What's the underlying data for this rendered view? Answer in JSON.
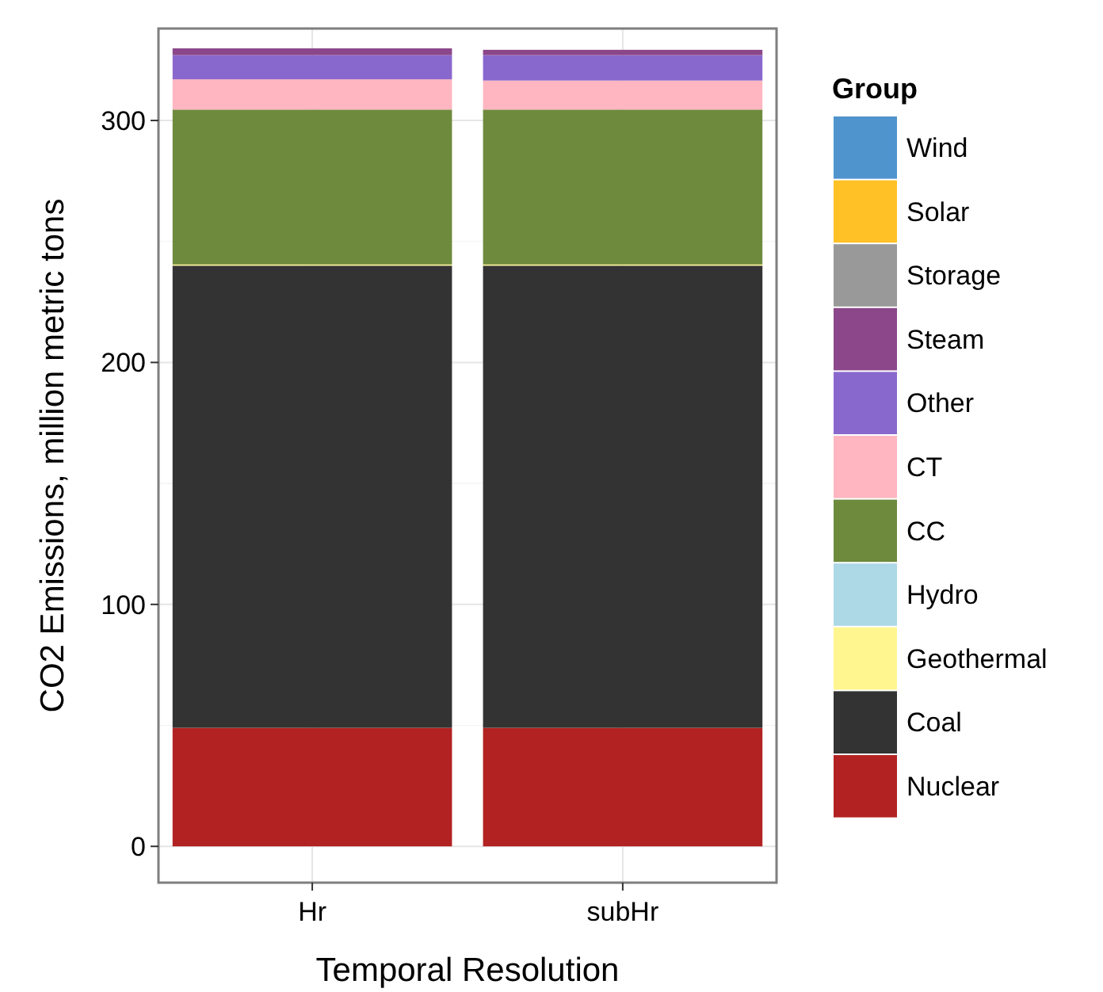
{
  "chart_data": {
    "type": "bar",
    "stacked": true,
    "xlabel": "Temporal Resolution",
    "ylabel": "CO2 Emissions, million metric tons",
    "legend_title": "Group",
    "legend": "right",
    "grid": true,
    "categories": [
      "Hr",
      "subHr"
    ],
    "ylim": [
      -15,
      338
    ],
    "yticks": [
      0,
      100,
      200,
      300
    ],
    "series": [
      {
        "name": "Nuclear",
        "color": "#b22222",
        "values": [
          49,
          49
        ]
      },
      {
        "name": "Coal",
        "color": "#333333",
        "values": [
          191,
          191
        ]
      },
      {
        "name": "Geothermal",
        "color": "#fff68f",
        "values": [
          0.5,
          0.5
        ]
      },
      {
        "name": "Hydro",
        "color": "#add8e6",
        "values": [
          0,
          0
        ]
      },
      {
        "name": "CC",
        "color": "#6e8b3d",
        "values": [
          64,
          64
        ]
      },
      {
        "name": "CT",
        "color": "#ffb6c1",
        "values": [
          12.5,
          12
        ]
      },
      {
        "name": "Other",
        "color": "#8968cd",
        "values": [
          10,
          10.5
        ]
      },
      {
        "name": "Steam",
        "color": "#8b4789",
        "values": [
          2.8,
          2.2
        ]
      },
      {
        "name": "Storage",
        "color": "#999999",
        "values": [
          0,
          0
        ]
      },
      {
        "name": "Solar",
        "color": "#ffc125",
        "values": [
          0,
          0
        ]
      },
      {
        "name": "Wind",
        "color": "#4f94cd",
        "values": [
          0,
          0
        ]
      }
    ]
  }
}
